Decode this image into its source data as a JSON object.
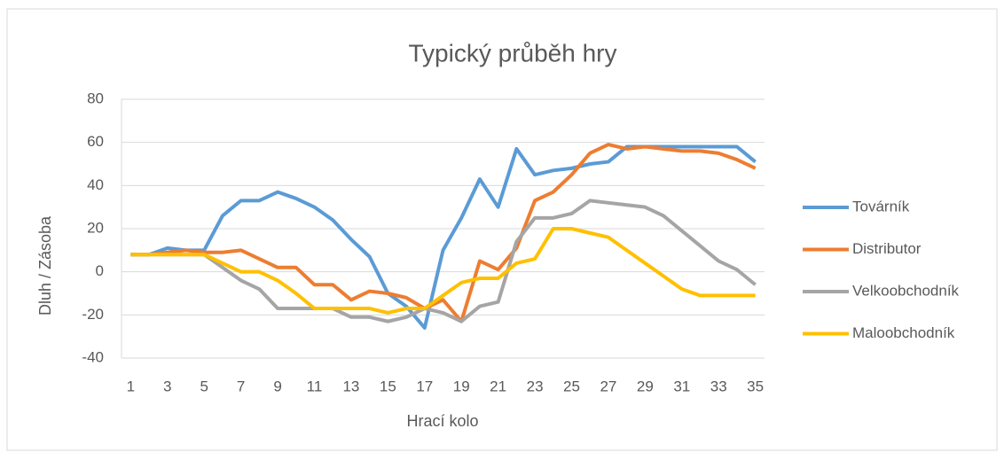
{
  "chart_data": {
    "type": "line",
    "title": "Typický průběh hry",
    "x_label": "Hrací kolo",
    "y_label": "Dluh / Zásoba",
    "categories": [
      1,
      null,
      3,
      null,
      5,
      null,
      7,
      null,
      9,
      null,
      11,
      null,
      13,
      null,
      15,
      null,
      17,
      null,
      19,
      null,
      21,
      null,
      23,
      null,
      25,
      null,
      27,
      null,
      29,
      null,
      31,
      null,
      33,
      null,
      35
    ],
    "ylim": [
      -40,
      80
    ],
    "yticks": [
      -40,
      -20,
      0,
      20,
      40,
      60,
      80
    ],
    "grid": true,
    "legend": "right",
    "series": [
      {
        "name": "Továrník",
        "color": "#5b9bd5",
        "values": [
          8,
          8,
          11,
          10,
          10,
          26,
          33,
          33,
          37,
          34,
          30,
          24,
          15,
          7,
          -10,
          -16,
          -26,
          10,
          25,
          43,
          30,
          57,
          45,
          47,
          48,
          50,
          51,
          58,
          58,
          58,
          58,
          58,
          58,
          58,
          51
        ]
      },
      {
        "name": "Distributor",
        "color": "#ed7d31",
        "values": [
          8,
          8,
          9,
          10,
          9,
          9,
          10,
          6,
          2,
          2,
          -6,
          -6,
          -13,
          -9,
          -10,
          -12,
          -17,
          -13,
          -23,
          5,
          1,
          11,
          33,
          37,
          45,
          55,
          59,
          57,
          58,
          57,
          56,
          56,
          55,
          52,
          48
        ]
      },
      {
        "name": "Velkoobchodník",
        "color": "#a5a5a5",
        "values": [
          8,
          8,
          8,
          8,
          8,
          2,
          -4,
          -8,
          -17,
          -17,
          -17,
          -17,
          -21,
          -21,
          -23,
          -21,
          -17,
          -19,
          -23,
          -16,
          -14,
          14,
          25,
          25,
          27,
          33,
          32,
          31,
          30,
          26,
          19,
          12,
          5,
          1,
          -6
        ]
      },
      {
        "name": "Maloobchodník",
        "color": "#ffc000",
        "values": [
          8,
          8,
          8,
          8,
          8,
          4,
          0,
          0,
          -4,
          -10,
          -17,
          -17,
          -17,
          -17,
          -19,
          -17,
          -17,
          -11,
          -5,
          -3,
          -3,
          4,
          6,
          20,
          20,
          18,
          16,
          10,
          4,
          -2,
          -8,
          -11,
          -11,
          -11,
          -11
        ]
      }
    ]
  }
}
